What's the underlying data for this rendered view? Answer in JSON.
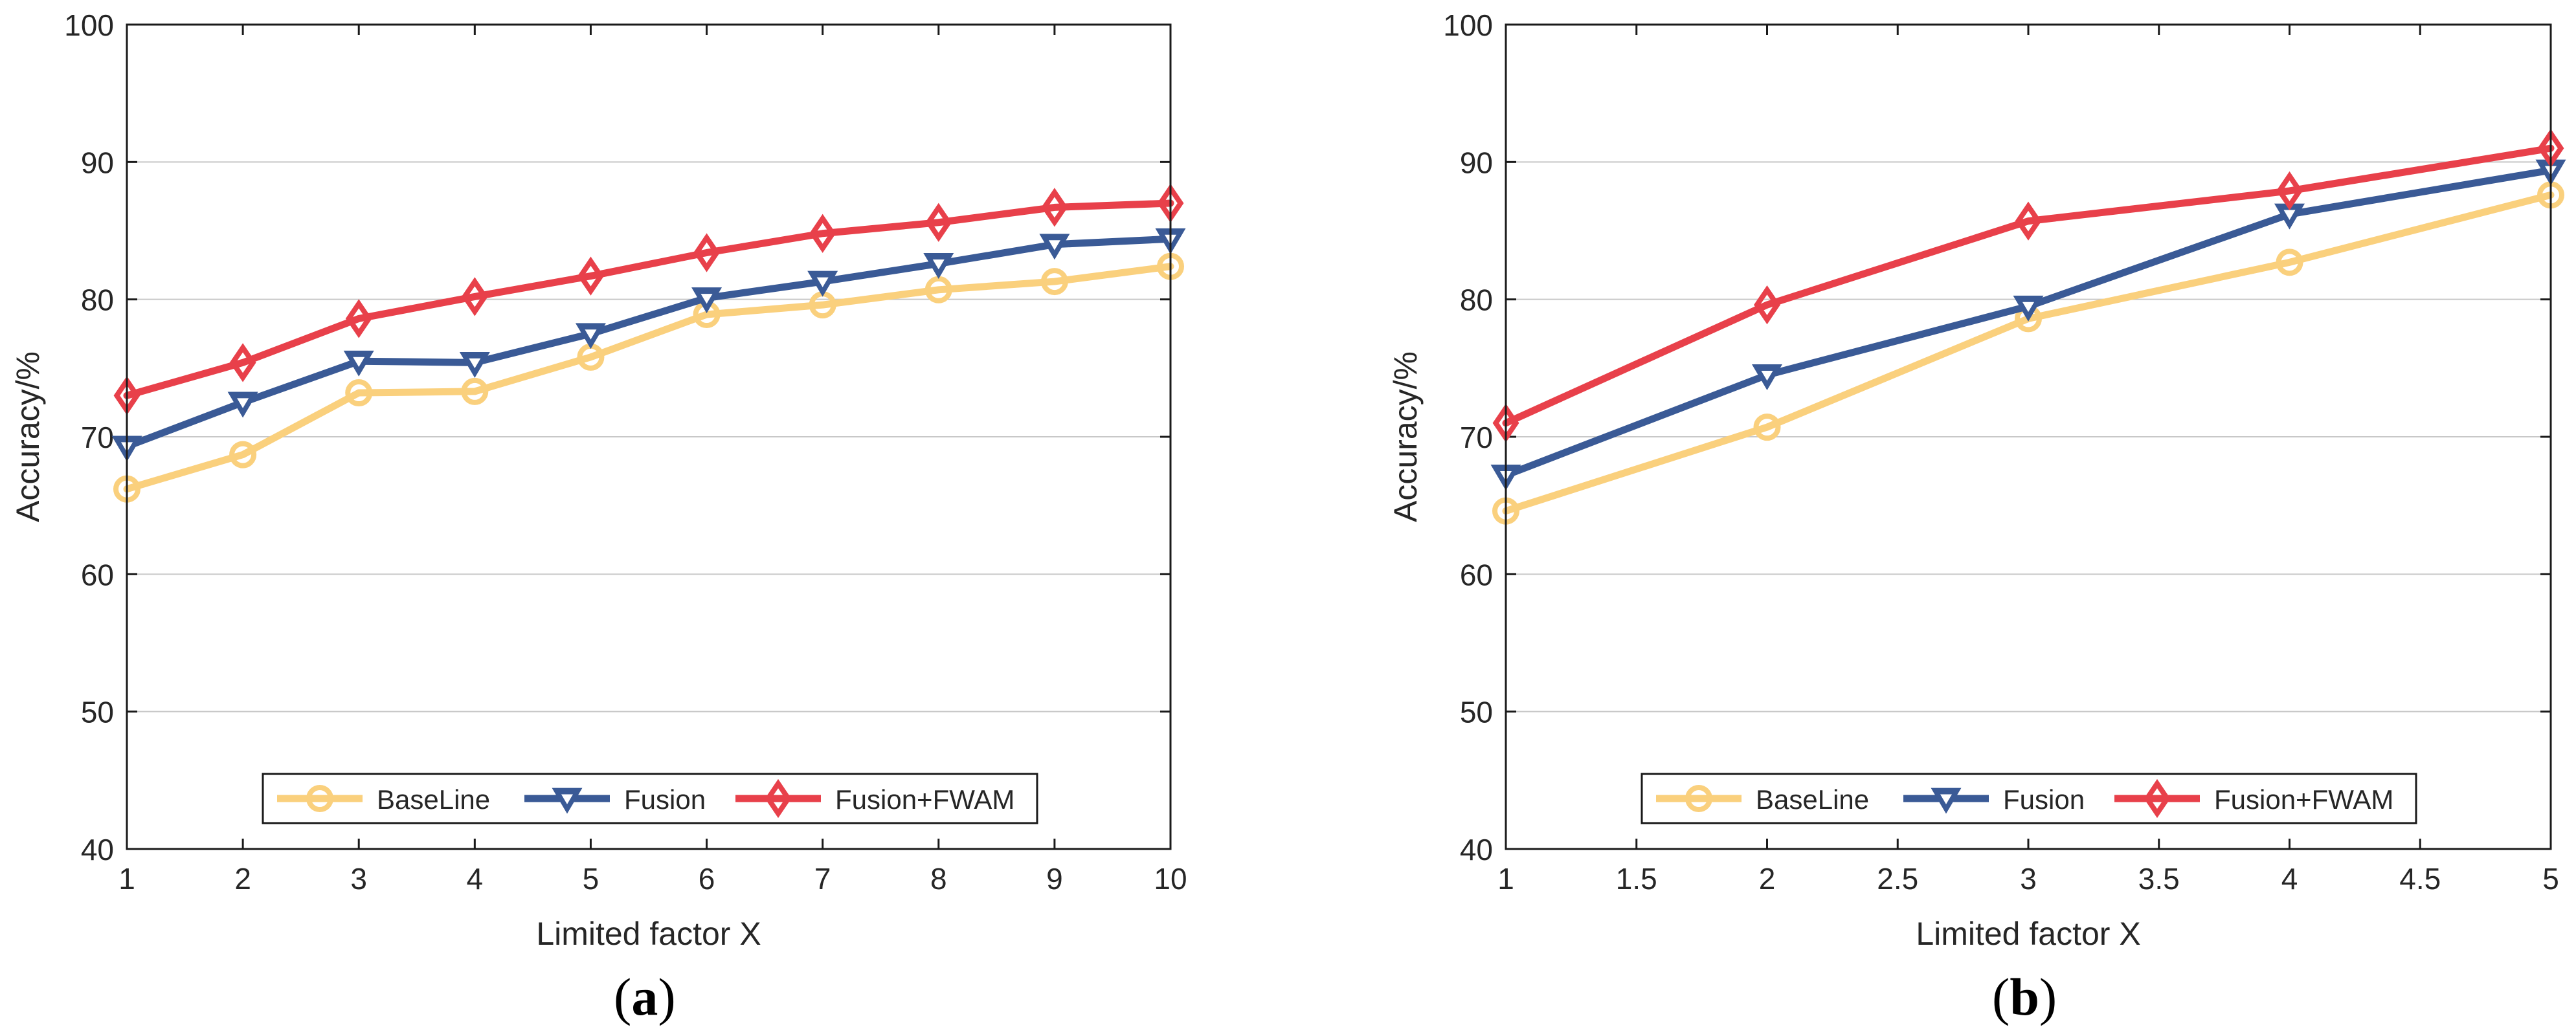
{
  "figure": {
    "panels": [
      {
        "label": "a"
      },
      {
        "label": "b"
      }
    ]
  },
  "colors": {
    "BaseLine": "#FAD07D",
    "Fusion": "#3A5A96",
    "Fusion+FWAM": "#E8404A"
  },
  "chart_data": [
    {
      "type": "line",
      "panel": "a",
      "xlabel": "Limited factor X",
      "ylabel": "Accuracy/%",
      "x": [
        1,
        2,
        3,
        4,
        5,
        6,
        7,
        8,
        9,
        10
      ],
      "xlim": [
        1,
        10
      ],
      "ylim": [
        40,
        100
      ],
      "xticks": [
        "1",
        "2",
        "3",
        "4",
        "5",
        "6",
        "7",
        "8",
        "9",
        "10"
      ],
      "yticks": [
        "40",
        "50",
        "60",
        "70",
        "80",
        "90",
        "100"
      ],
      "legend_position": "bottom-center",
      "series": [
        {
          "name": "BaseLine",
          "marker": "circle",
          "values": [
            66.2,
            68.7,
            73.2,
            73.3,
            75.8,
            78.9,
            79.6,
            80.7,
            81.3,
            82.4
          ]
        },
        {
          "name": "Fusion",
          "marker": "triangle-down",
          "values": [
            69.3,
            72.5,
            75.5,
            75.4,
            77.5,
            80.1,
            81.3,
            82.6,
            84.0,
            84.4
          ]
        },
        {
          "name": "Fusion+FWAM",
          "marker": "diamond",
          "values": [
            73.0,
            75.4,
            78.6,
            80.2,
            81.7,
            83.4,
            84.8,
            85.6,
            86.7,
            87.0
          ]
        }
      ]
    },
    {
      "type": "line",
      "panel": "b",
      "xlabel": "Limited factor X",
      "ylabel": "Accuracy/%",
      "x": [
        1,
        2,
        3,
        4,
        5
      ],
      "xlim": [
        1,
        5
      ],
      "ylim": [
        40,
        100
      ],
      "xticks": [
        "1",
        "1.5",
        "2",
        "2.5",
        "3",
        "3.5",
        "4",
        "4.5",
        "5"
      ],
      "yticks": [
        "40",
        "50",
        "60",
        "70",
        "80",
        "90",
        "100"
      ],
      "legend_position": "bottom-center",
      "series": [
        {
          "name": "BaseLine",
          "marker": "circle",
          "values": [
            64.6,
            70.7,
            78.6,
            82.7,
            87.6
          ]
        },
        {
          "name": "Fusion",
          "marker": "triangle-down",
          "values": [
            67.2,
            74.5,
            79.5,
            86.2,
            89.4
          ]
        },
        {
          "name": "Fusion+FWAM",
          "marker": "diamond",
          "values": [
            71.0,
            79.6,
            85.7,
            87.9,
            91.0
          ]
        }
      ]
    }
  ]
}
